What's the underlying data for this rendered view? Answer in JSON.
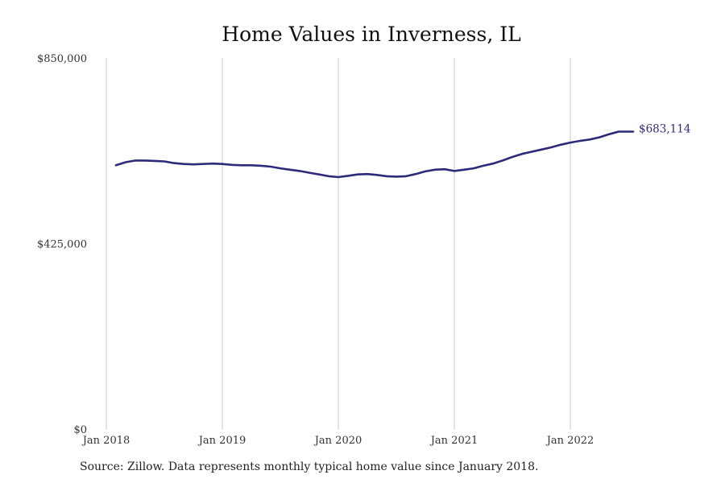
{
  "chart_data": {
    "type": "line",
    "title": "Home Values in Inverness, IL",
    "xlabel": "",
    "ylabel": "",
    "x_tick_labels": [
      "Jan 2018",
      "Jan 2019",
      "Jan 2020",
      "Jan 2021",
      "Jan 2022"
    ],
    "y_tick_labels": [
      "$850,000",
      "$425,000",
      "$0"
    ],
    "y_ticks": [
      850000,
      425000,
      0
    ],
    "ylim": [
      0,
      850000
    ],
    "xlim": [
      "2018-01",
      "2023-01"
    ],
    "grid": "vertical",
    "line_color": "#2e2a7a",
    "end_label": "$683,114",
    "series": [
      {
        "x": [
          "2018-02",
          "2018-03",
          "2018-04",
          "2018-05",
          "2018-06",
          "2018-07",
          "2018-08",
          "2018-09",
          "2018-10",
          "2018-11",
          "2018-12",
          "2019-01",
          "2019-02",
          "2019-03",
          "2019-04",
          "2019-05",
          "2019-06",
          "2019-07",
          "2019-08",
          "2019-09",
          "2019-10",
          "2019-11",
          "2019-12",
          "2020-01",
          "2020-02",
          "2020-03",
          "2020-04",
          "2020-05",
          "2020-06",
          "2020-07",
          "2020-08",
          "2020-09",
          "2020-10",
          "2020-11",
          "2020-12",
          "2021-01",
          "2021-02",
          "2021-03",
          "2021-04",
          "2021-05",
          "2021-06",
          "2021-07",
          "2021-08",
          "2021-09",
          "2021-10",
          "2021-11",
          "2021-12",
          "2022-01",
          "2022-02",
          "2022-03",
          "2022-04",
          "2022-05",
          "2022-06",
          "2022-07"
        ],
        "values": [
          606000,
          613000,
          617000,
          617000,
          616000,
          615000,
          611000,
          609000,
          608000,
          609000,
          610000,
          609000,
          607000,
          606000,
          606000,
          605000,
          603000,
          599000,
          596000,
          593000,
          589000,
          585000,
          581000,
          579000,
          582000,
          585000,
          586000,
          584000,
          581000,
          580000,
          581000,
          586000,
          592000,
          596000,
          597000,
          593000,
          596000,
          599000,
          605000,
          610000,
          617000,
          625000,
          632000,
          637000,
          642000,
          647000,
          653000,
          658000,
          662000,
          665000,
          670000,
          677000,
          683114,
          683114
        ]
      }
    ]
  },
  "source_note": "Source: Zillow. Data represents monthly typical home value since January 2018."
}
